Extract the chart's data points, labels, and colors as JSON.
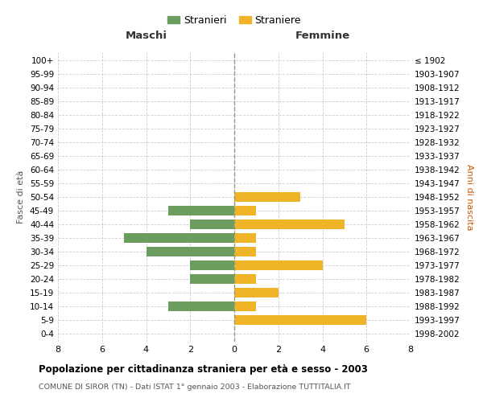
{
  "age_groups_bottom_to_top": [
    "0-4",
    "5-9",
    "10-14",
    "15-19",
    "20-24",
    "25-29",
    "30-34",
    "35-39",
    "40-44",
    "45-49",
    "50-54",
    "55-59",
    "60-64",
    "65-69",
    "70-74",
    "75-79",
    "80-84",
    "85-89",
    "90-94",
    "95-99",
    "100+"
  ],
  "birth_years_bottom_to_top": [
    "1998-2002",
    "1993-1997",
    "1988-1992",
    "1983-1987",
    "1978-1982",
    "1973-1977",
    "1968-1972",
    "1963-1967",
    "1958-1962",
    "1953-1957",
    "1948-1952",
    "1943-1947",
    "1938-1942",
    "1933-1937",
    "1928-1932",
    "1923-1927",
    "1918-1922",
    "1913-1917",
    "1908-1912",
    "1903-1907",
    "≤ 1902"
  ],
  "maschi_bottom_to_top": [
    0,
    0,
    3,
    0,
    2,
    2,
    4,
    5,
    2,
    3,
    0,
    0,
    0,
    0,
    0,
    0,
    0,
    0,
    0,
    0,
    0
  ],
  "femmine_bottom_to_top": [
    0,
    6,
    1,
    2,
    1,
    4,
    1,
    1,
    5,
    1,
    3,
    0,
    0,
    0,
    0,
    0,
    0,
    0,
    0,
    0,
    0
  ],
  "maschi_color": "#6b9e5e",
  "femmine_color": "#f0b429",
  "title": "Popolazione per cittadinanza straniera per età e sesso - 2003",
  "subtitle": "COMUNE DI SIROR (TN) - Dati ISTAT 1° gennaio 2003 - Elaborazione TUTTITALIA.IT",
  "header_left": "Maschi",
  "header_right": "Femmine",
  "ylabel_left": "Fasce di età",
  "ylabel_right": "Anni di nascita",
  "legend_maschi": "Stranieri",
  "legend_femmine": "Straniere",
  "xlim": 8,
  "bar_height": 0.72,
  "background_color": "#ffffff",
  "grid_color": "#cccccc",
  "center_line_color": "#999977",
  "title_color": "#000000",
  "subtitle_color": "#555555",
  "header_color": "#333333",
  "ylabel_right_color": "#cc5500"
}
